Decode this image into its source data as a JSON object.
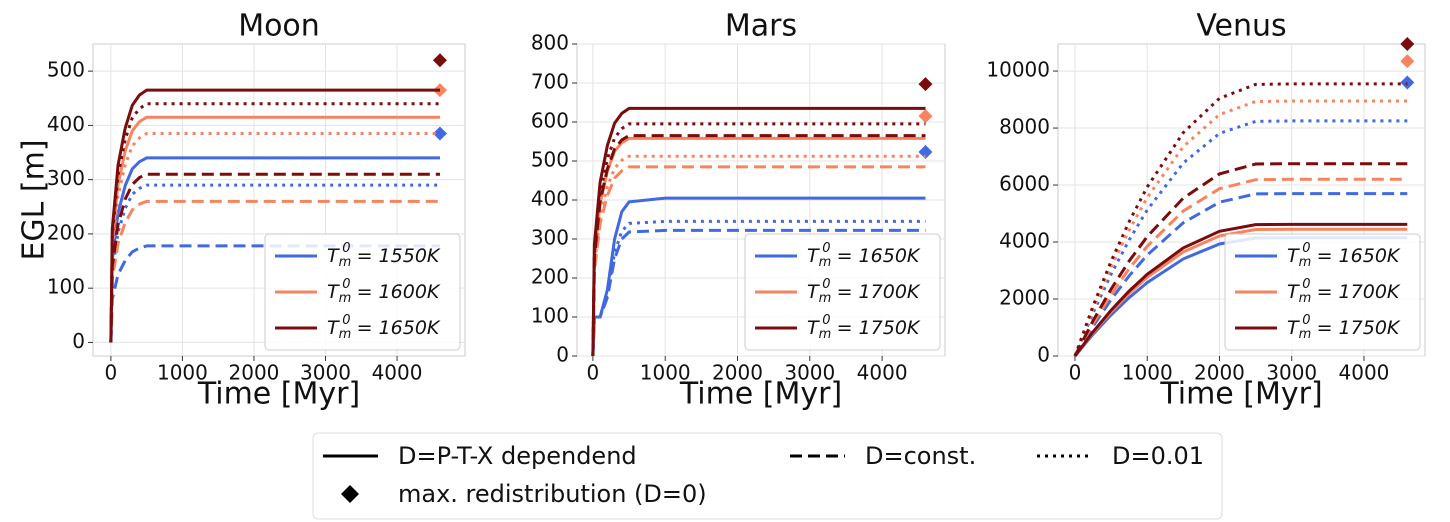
{
  "chart_data": [
    {
      "type": "line",
      "title": "Moon",
      "xlabel": "Time [Myr]",
      "ylabel": "EGL [m]",
      "x": [
        0,
        20,
        100,
        200,
        300,
        400,
        500,
        1000,
        2000,
        3000,
        4000,
        4600
      ],
      "xlim": [
        -250,
        4950
      ],
      "xticks": [
        0,
        1000,
        2000,
        3000,
        4000
      ],
      "ylim": [
        -25,
        550
      ],
      "yticks": [
        0,
        100,
        200,
        300,
        400,
        500
      ],
      "grid": true,
      "legend_loc": "lower right",
      "series": [
        {
          "name": "Tm0 = 1550K",
          "color": "#4169e1",
          "max_value": 385,
          "values": [
            [
              0,
              153,
              238,
              289,
              320,
              333,
              340,
              340,
              340,
              340,
              340,
              340
            ],
            [
              0,
              80,
              125,
              151,
              167,
              174,
              178,
              178,
              178,
              178,
              178,
              178
            ],
            [
              0,
              131,
              203,
              247,
              273,
              284,
              290,
              290,
              290,
              290,
              290,
              290
            ]
          ]
        },
        {
          "name": "Tm0 = 1600K",
          "color": "#f7845e",
          "max_value": 465,
          "values": [
            [
              0,
              187,
              291,
              353,
              390,
              407,
              415,
              415,
              415,
              415,
              415,
              415
            ],
            [
              0,
              117,
              182,
              221,
              244,
              255,
              260,
              260,
              260,
              260,
              260,
              260
            ],
            [
              0,
              173,
              270,
              327,
              362,
              377,
              385,
              385,
              385,
              385,
              385,
              385
            ]
          ]
        },
        {
          "name": "Tm0 = 1650K",
          "color": "#7a0c0c",
          "max_value": 520,
          "values": [
            [
              0,
              209,
              326,
              395,
              437,
              456,
              465,
              465,
              465,
              465,
              465,
              465
            ],
            [
              0,
              140,
              217,
              264,
              291,
              304,
              310,
              310,
              310,
              310,
              310,
              310
            ],
            [
              0,
              198,
              308,
              374,
              414,
              431,
              440,
              440,
              440,
              440,
              440,
              440
            ]
          ]
        }
      ]
    },
    {
      "type": "line",
      "title": "Mars",
      "xlabel": "Time [Myr]",
      "x": [
        0,
        20,
        100,
        200,
        300,
        400,
        500,
        1000,
        2000,
        3000,
        4000,
        4600
      ],
      "xlim": [
        -220,
        4870
      ],
      "xticks": [
        0,
        1000,
        2000,
        3000,
        4000
      ],
      "ylim": [
        0,
        800
      ],
      "yticks": [
        0,
        100,
        200,
        300,
        400,
        500,
        600,
        700,
        800
      ],
      "grid": true,
      "legend_loc": "lower right",
      "series": [
        {
          "name": "Tm0 = 1650K",
          "color": "#4169e1",
          "max_value": 523,
          "values": [
            [
              0,
              100,
              100,
              170,
              300,
              370,
              395,
              405,
              405,
              405,
              405,
              405
            ],
            [
              0,
              100,
              100,
              150,
              250,
              300,
              318,
              322,
              322,
              322,
              322,
              322
            ],
            [
              0,
              100,
              100,
              160,
              265,
              320,
              340,
              345,
              345,
              345,
              345,
              345
            ]
          ]
        },
        {
          "name": "Tm0 = 1700K",
          "color": "#f7845e",
          "max_value": 615,
          "values": [
            [
              0,
              251,
              391,
              474,
              525,
              547,
              558,
              558,
              558,
              558,
              558,
              558
            ],
            [
              0,
              218,
              340,
              412,
              456,
              475,
              485,
              485,
              485,
              485,
              485,
              485
            ],
            [
              0,
              230,
              358,
              435,
              481,
              502,
              512,
              512,
              512,
              512,
              512,
              512
            ]
          ]
        },
        {
          "name": "Tm0 = 1750K",
          "color": "#7a0c0c",
          "max_value": 697,
          "values": [
            [
              0,
              286,
              445,
              540,
              597,
              622,
              635,
              635,
              635,
              635,
              635,
              635
            ],
            [
              0,
              254,
              396,
              480,
              531,
              554,
              565,
              565,
              565,
              565,
              565,
              565
            ],
            [
              0,
              268,
              417,
              506,
              559,
              583,
              595,
              595,
              595,
              595,
              595,
              595
            ]
          ]
        }
      ]
    },
    {
      "type": "line",
      "title": "Venus",
      "xlabel": "Time [Myr]",
      "x": [
        0,
        250,
        500,
        750,
        1000,
        1500,
        2000,
        2500,
        3000,
        4000,
        4600
      ],
      "xlim": [
        -235,
        4845
      ],
      "xticks": [
        0,
        1000,
        2000,
        3000,
        4000
      ],
      "ylim": [
        0,
        10950
      ],
      "yticks": [
        0,
        2000,
        4000,
        6000,
        8000,
        10000
      ],
      "grid": true,
      "legend_loc": "lower right",
      "series": [
        {
          "name": "Tm0 = 1650K",
          "color": "#4169e1",
          "max_value": 9600,
          "values": [
            [
              0,
              760,
              1444,
              2050,
              2577,
              3407,
              3930,
              4142,
              4150,
              4150,
              4150
            ],
            [
              0,
              1043,
              1984,
              2816,
              3540,
              4680,
              5398,
              5689,
              5700,
              5700,
              5700
            ],
            [
              0,
              1510,
              2871,
              4076,
              5123,
              6773,
              7813,
              8234,
              8250,
              8250,
              8250
            ]
          ]
        },
        {
          "name": "Tm0 = 1700K",
          "color": "#f7845e",
          "max_value": 10350,
          "values": [
            [
              0,
              814,
              1549,
              2198,
              2763,
              3653,
              4214,
              4441,
              4450,
              4450,
              4450
            ],
            [
              0,
              1135,
              2158,
              3063,
              3850,
              5090,
              5871,
              6188,
              6200,
              6200,
              6200
            ],
            [
              0,
              1638,
              3115,
              4421,
              5558,
              7348,
              8476,
              8932,
              8950,
              8950,
              8950
            ]
          ]
        },
        {
          "name": "Tm0 = 1750K",
          "color": "#7a0c0c",
          "max_value": 10950,
          "values": [
            [
              0,
              845,
              1608,
              2282,
              2869,
              3793,
              4375,
              4611,
              4620,
              4620,
              4620
            ],
            [
              0,
              1235,
              2349,
              3335,
              4192,
              5542,
              6392,
              6737,
              6750,
              6750,
              6750
            ],
            [
              0,
              1748,
              3323,
              4718,
              5931,
              7841,
              9044,
              9531,
              9550,
              9550,
              9550
            ]
          ]
        }
      ]
    }
  ],
  "legend": {
    "line_styles": [
      {
        "label": "D=P-T-X dependend",
        "dash": "solid"
      },
      {
        "label": "D=const.",
        "dash": "dashed"
      },
      {
        "label": "D=0.01",
        "dash": "dotted"
      }
    ],
    "marker": {
      "label": "max. redistribution (D=0)",
      "shape": "diamond",
      "color": "#000000"
    }
  }
}
